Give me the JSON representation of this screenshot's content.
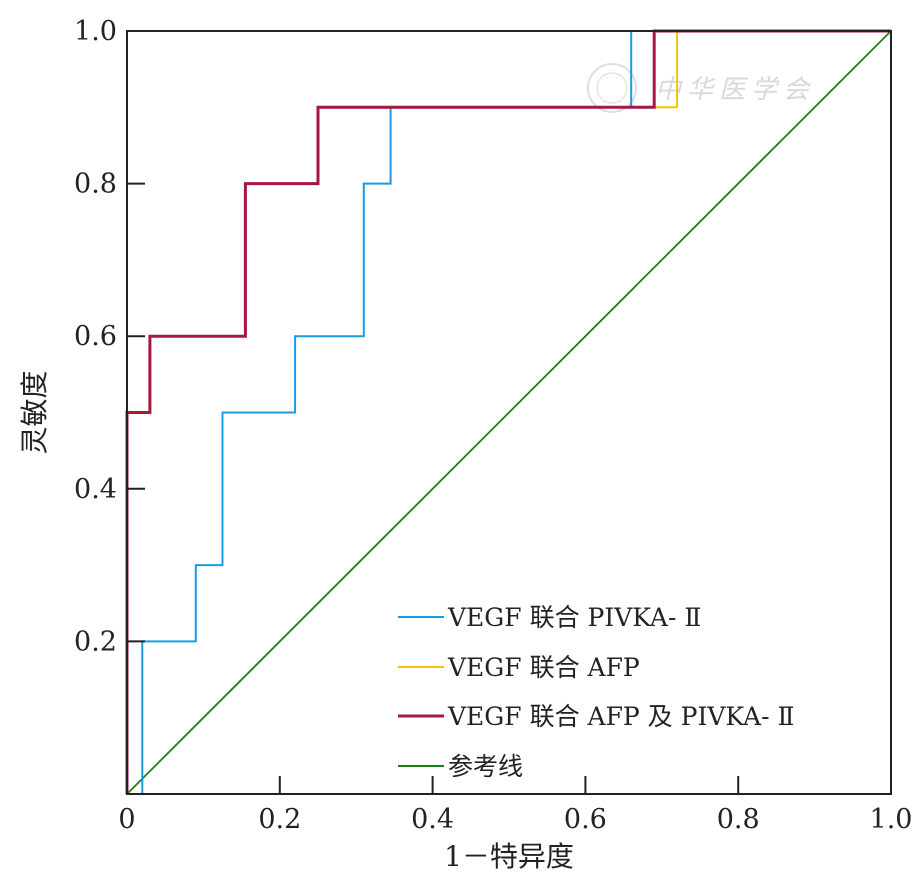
{
  "chart_data": {
    "type": "line",
    "title": "",
    "xlabel": "1－特异度",
    "ylabel": "灵敏度",
    "xlim": [
      0,
      1
    ],
    "ylim": [
      0,
      1
    ],
    "x_ticks": [
      "0",
      "0.2",
      "0.4",
      "0.6",
      "0.8",
      "1.0"
    ],
    "y_ticks": [
      "0.2",
      "0.4",
      "0.6",
      "0.8",
      "1.0"
    ],
    "x_tick_values": [
      0,
      0.2,
      0.4,
      0.6,
      0.8,
      1.0
    ],
    "y_tick_values": [
      0.2,
      0.4,
      0.6,
      0.8,
      1.0
    ],
    "grid": false,
    "legend_position": "bottom-right",
    "series": [
      {
        "name": "VEGF 联合 PIVKA- Ⅱ",
        "color": "#1a9be0",
        "points": [
          [
            0.02,
            0
          ],
          [
            0.02,
            0.2
          ],
          [
            0.09,
            0.2
          ],
          [
            0.09,
            0.3
          ],
          [
            0.125,
            0.3
          ],
          [
            0.125,
            0.5
          ],
          [
            0.22,
            0.5
          ],
          [
            0.22,
            0.6
          ],
          [
            0.31,
            0.6
          ],
          [
            0.31,
            0.8
          ],
          [
            0.345,
            0.8
          ],
          [
            0.345,
            0.9
          ],
          [
            0.66,
            0.9
          ],
          [
            0.66,
            1.0
          ],
          [
            1.0,
            1.0
          ]
        ]
      },
      {
        "name": "VEGF 联合 AFP",
        "color": "#f5c400",
        "points": [
          [
            0,
            0
          ],
          [
            0,
            0.5
          ],
          [
            0.03,
            0.5
          ],
          [
            0.03,
            0.6
          ],
          [
            0.155,
            0.6
          ],
          [
            0.155,
            0.8
          ],
          [
            0.25,
            0.8
          ],
          [
            0.25,
            0.9
          ],
          [
            0.72,
            0.9
          ],
          [
            0.72,
            1.0
          ],
          [
            1.0,
            1.0
          ]
        ]
      },
      {
        "name": "VEGF 联合 AFP 及 PIVKA- Ⅱ",
        "color": "#a3174e",
        "points": [
          [
            0,
            0
          ],
          [
            0,
            0.5
          ],
          [
            0.03,
            0.5
          ],
          [
            0.03,
            0.6
          ],
          [
            0.155,
            0.6
          ],
          [
            0.155,
            0.8
          ],
          [
            0.25,
            0.8
          ],
          [
            0.25,
            0.9
          ],
          [
            0.69,
            0.9
          ],
          [
            0.69,
            1.0
          ],
          [
            1.0,
            1.0
          ]
        ]
      },
      {
        "name": "参考线",
        "color": "#1e7d1e",
        "points": [
          [
            0,
            0
          ],
          [
            1,
            1
          ]
        ]
      }
    ],
    "overlay_color": "#b01a1a",
    "watermark": "中华医学会"
  }
}
